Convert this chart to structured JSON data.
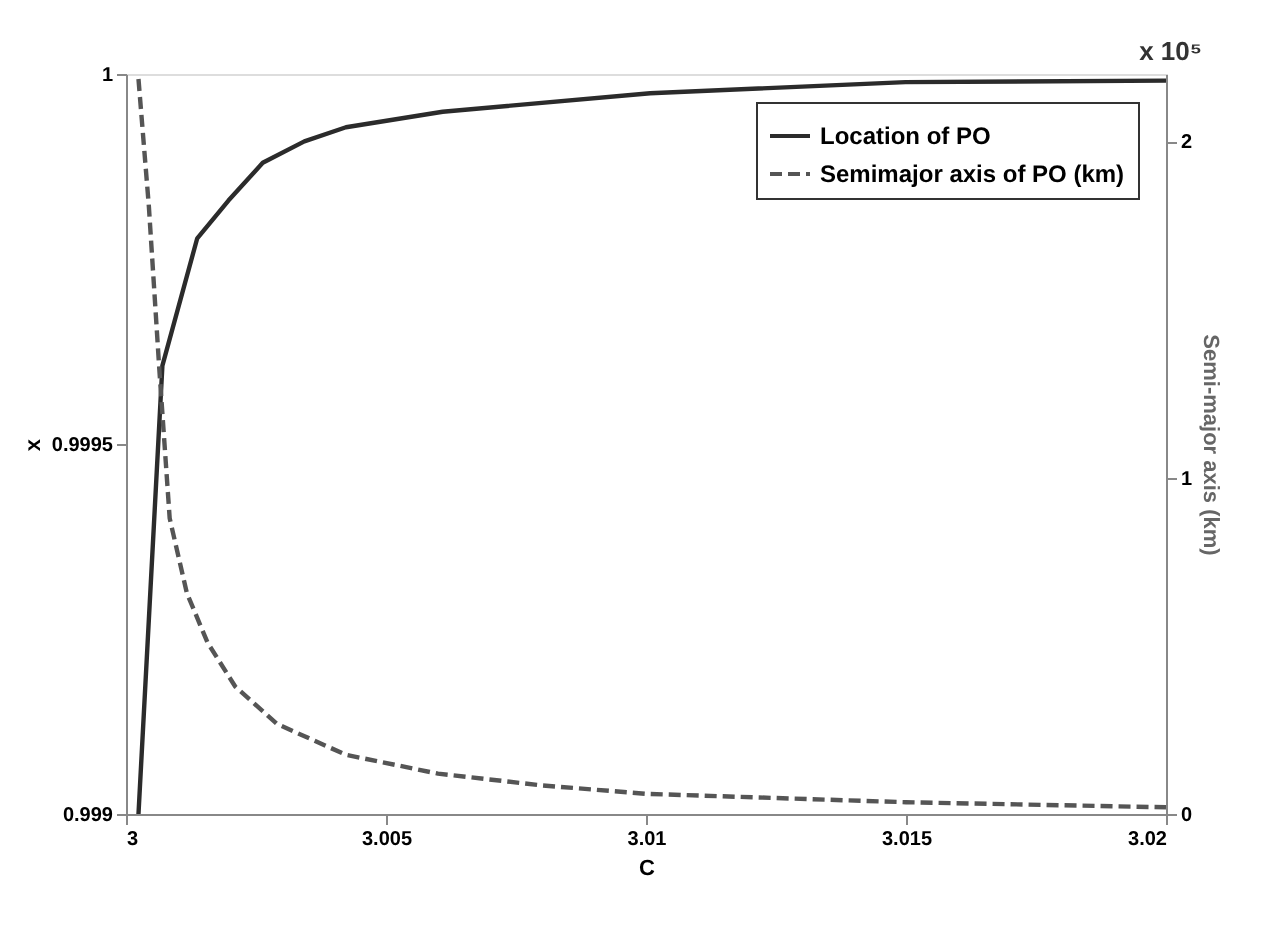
{
  "chart_data": {
    "type": "line",
    "xlabel": "C",
    "ylabel": "x",
    "y2label": "Semi-major axis (km)",
    "annotations": [
      "x 10⁵"
    ],
    "xlim": [
      3,
      3.02
    ],
    "xticks": [
      3,
      3.005,
      3.01,
      3.015,
      3.02
    ],
    "ylim": [
      0.999,
      1
    ],
    "yticks": [
      0.999,
      0.9995,
      1
    ],
    "y2lim": [
      0,
      2.2
    ],
    "y2ticks": [
      0,
      1,
      2
    ],
    "grid": false,
    "legend": "top right",
    "marker": "none",
    "series": [
      {
        "name": "Location of PO",
        "color": "#2b2b2b",
        "line_style": "solid",
        "x": [
          3.00024,
          3.0007,
          3.00137,
          3.00197,
          3.00263,
          3.00343,
          3.00423,
          3.00609,
          3.01008,
          3.01499,
          3.02
        ],
        "values": [
          0.999,
          0.999606,
          0.999778,
          0.999829,
          0.99988,
          0.999909,
          0.999928,
          0.999949,
          0.999974,
          0.999989,
          0.999991
        ]
      },
      {
        "name": "Semimajor axis of PO (km)",
        "color": "#555555",
        "line_style": "dashed",
        "axis": "y2",
        "x": [
          3.00024,
          3.00044,
          3.00064,
          3.00084,
          3.00117,
          3.00157,
          3.0021,
          3.0029,
          3.00423,
          3.006,
          3.008,
          3.01,
          3.015,
          3.02
        ],
        "values": [
          2.185,
          1.806,
          1.324,
          0.879,
          0.657,
          0.509,
          0.379,
          0.268,
          0.176,
          0.12,
          0.085,
          0.06,
          0.035,
          0.02
        ]
      }
    ]
  }
}
